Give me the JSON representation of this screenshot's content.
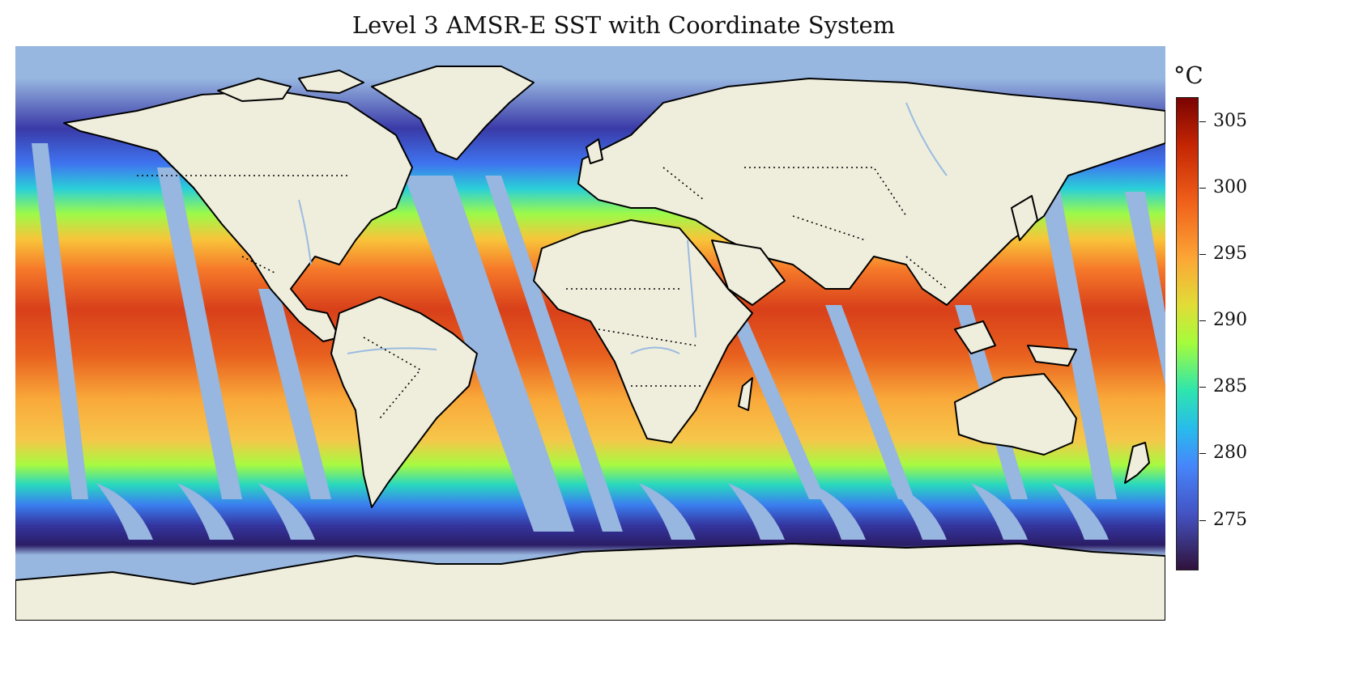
{
  "title": "Level 3 AMSR-E SST with Coordinate System",
  "colorbar": {
    "unit": "°C",
    "min": 271.2,
    "max": 306.8,
    "ticks": [
      305,
      300,
      295,
      290,
      285,
      280,
      275
    ],
    "colormap": "turbo"
  },
  "colors": {
    "ocean_no_data": "#97b6e0",
    "land": "#efeedd",
    "coastline": "#000000",
    "rivers": "#9bbbe0"
  },
  "layers": [
    "coastlines",
    "country-borders",
    "rivers",
    "lakes",
    "sst-swaths"
  ]
}
